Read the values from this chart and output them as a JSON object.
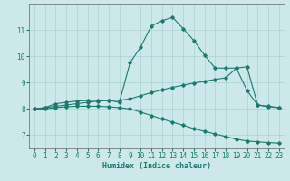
{
  "xlabel": "Humidex (Indice chaleur)",
  "bg_color": "#cce8e8",
  "line_color": "#1a7a6e",
  "grid_color": "#aad0d0",
  "xlim": [
    -0.5,
    23.5
  ],
  "ylim": [
    6.5,
    12.0
  ],
  "xticks": [
    0,
    1,
    2,
    3,
    4,
    5,
    6,
    7,
    8,
    9,
    10,
    11,
    12,
    13,
    14,
    15,
    16,
    17,
    18,
    19,
    20,
    21,
    22,
    23
  ],
  "yticks": [
    7,
    8,
    9,
    10,
    11
  ],
  "line1_x": [
    0,
    1,
    2,
    3,
    4,
    5,
    6,
    7,
    8,
    9,
    10,
    11,
    12,
    13,
    14,
    15,
    16,
    17,
    18,
    19,
    20,
    21,
    22,
    23
  ],
  "line1_y": [
    8.0,
    8.05,
    8.2,
    8.25,
    8.3,
    8.32,
    8.33,
    8.33,
    8.25,
    9.75,
    10.35,
    11.15,
    11.35,
    11.48,
    11.05,
    10.6,
    10.05,
    9.55,
    9.55,
    9.55,
    8.7,
    8.15,
    8.1,
    8.05
  ],
  "line2_x": [
    0,
    1,
    2,
    3,
    4,
    5,
    6,
    7,
    8,
    9,
    10,
    11,
    12,
    13,
    14,
    15,
    16,
    17,
    18,
    19,
    20,
    21,
    22,
    23
  ],
  "line2_y": [
    8.0,
    8.05,
    8.1,
    8.15,
    8.2,
    8.25,
    8.3,
    8.32,
    8.33,
    8.38,
    8.5,
    8.62,
    8.72,
    8.82,
    8.9,
    8.98,
    9.05,
    9.12,
    9.18,
    9.55,
    9.6,
    8.15,
    8.08,
    8.05
  ],
  "line3_x": [
    0,
    1,
    2,
    3,
    4,
    5,
    6,
    7,
    8,
    9,
    10,
    11,
    12,
    13,
    14,
    15,
    16,
    17,
    18,
    19,
    20,
    21,
    22,
    23
  ],
  "line3_y": [
    8.0,
    8.0,
    8.05,
    8.08,
    8.1,
    8.1,
    8.1,
    8.08,
    8.05,
    8.0,
    7.88,
    7.75,
    7.62,
    7.5,
    7.38,
    7.25,
    7.15,
    7.05,
    6.95,
    6.85,
    6.78,
    6.75,
    6.72,
    6.7
  ]
}
